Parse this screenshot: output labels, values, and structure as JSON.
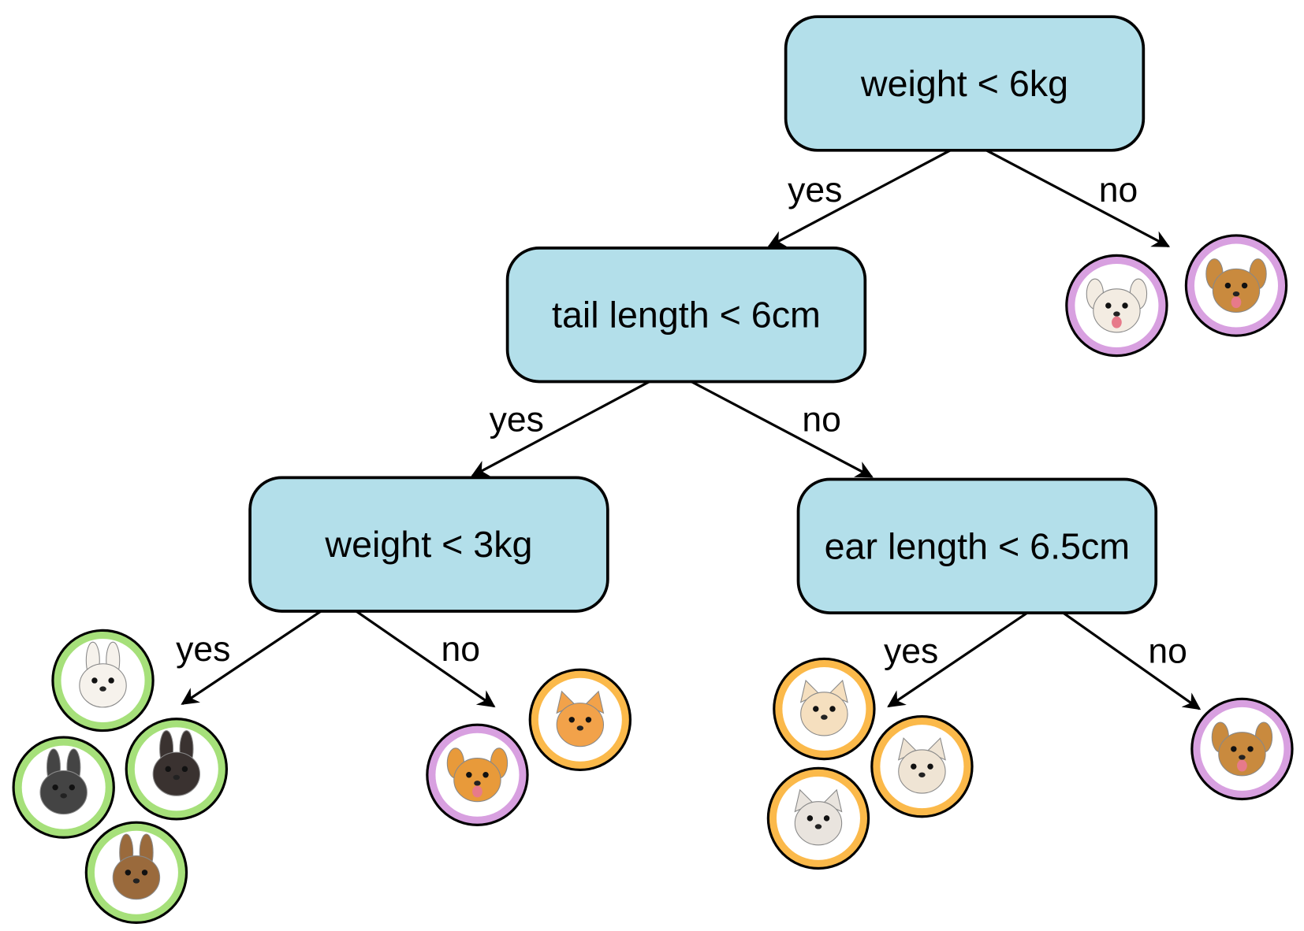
{
  "colors": {
    "node_fill": "#b3dfea",
    "rabbit_ring": "#a6e07a",
    "cat_ring": "#fbb94a",
    "dog_ring": "#d8a0e0"
  },
  "nodes": [
    {
      "id": "root",
      "label": "weight < 6kg"
    },
    {
      "id": "n2",
      "label": "tail length < 6cm"
    },
    {
      "id": "n3",
      "label": "weight < 3kg"
    },
    {
      "id": "n4",
      "label": "ear length < 6.5cm"
    }
  ],
  "edges": [
    {
      "from": "root",
      "to": "n2",
      "label": "yes"
    },
    {
      "from": "root",
      "to": "leaf-dogs-large",
      "label": "no"
    },
    {
      "from": "n2",
      "to": "n3",
      "label": "yes"
    },
    {
      "from": "n2",
      "to": "n4",
      "label": "no"
    },
    {
      "from": "n3",
      "to": "leaf-rabbits",
      "label": "yes"
    },
    {
      "from": "n3",
      "to": "leaf-corgi-foldcat",
      "label": "no"
    },
    {
      "from": "n4",
      "to": "leaf-cats",
      "label": "yes"
    },
    {
      "from": "n4",
      "to": "leaf-yorkie",
      "label": "no"
    }
  ],
  "leaves": [
    {
      "icon": "poodle-icon",
      "kind": "dog"
    },
    {
      "icon": "german-shepherd-icon",
      "kind": "dog"
    },
    {
      "icon": "white-rabbit-icon",
      "kind": "rabbit"
    },
    {
      "icon": "black-lop-rabbit-icon",
      "kind": "rabbit"
    },
    {
      "icon": "dutch-rabbit-icon",
      "kind": "rabbit"
    },
    {
      "icon": "brown-rabbit-icon",
      "kind": "rabbit"
    },
    {
      "icon": "corgi-icon",
      "kind": "dog"
    },
    {
      "icon": "scottish-fold-cat-icon",
      "kind": "cat"
    },
    {
      "icon": "fluffy-cream-cat-icon",
      "kind": "cat"
    },
    {
      "icon": "siamese-cat-icon",
      "kind": "cat"
    },
    {
      "icon": "ragdoll-cat-icon",
      "kind": "cat"
    },
    {
      "icon": "yorkie-icon",
      "kind": "dog"
    }
  ]
}
